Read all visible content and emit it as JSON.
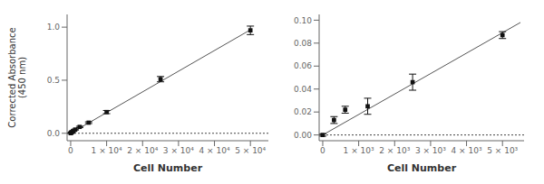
{
  "chart_data": [
    {
      "type": "scatter",
      "xlabel": "Cell Number",
      "ylabel": "Corrected Absorbance\n(450 nm)",
      "xlim": [
        -1000,
        55000
      ],
      "ylim": [
        -0.07,
        1.12
      ],
      "xticks": [
        0,
        {
          "value": 10000,
          "label": "1 × 10⁴"
        },
        {
          "value": 20000,
          "label": "2 × 10⁴"
        },
        {
          "value": 30000,
          "label": "3 × 10⁴"
        },
        {
          "value": 40000,
          "label": "4 × 10⁴"
        },
        {
          "value": 50000,
          "label": "5 × 10⁴"
        }
      ],
      "yticks": [
        {
          "value": 0.0,
          "label": "0.0"
        },
        0.5,
        {
          "value": 1.0,
          "label": "1.0"
        }
      ],
      "hlines": [
        {
          "value": 0,
          "color": "#444444",
          "line_style": "dotted"
        }
      ],
      "series": [
        {
          "type": "line",
          "color": "#555555",
          "line_style": "solid",
          "x": [
            0,
            50000
          ],
          "values": [
            0.0,
            0.975
          ]
        },
        {
          "type": "scatter",
          "color": "#111111",
          "marker": "square",
          "x": [
            0,
            156,
            313,
            625,
            1250,
            2500,
            5000,
            10000,
            25000,
            50000
          ],
          "values": [
            0.001,
            0.005,
            0.01,
            0.02,
            0.035,
            0.06,
            0.1,
            0.2,
            0.51,
            0.97
          ],
          "yerr": [
            0.002,
            0.003,
            0.003,
            0.004,
            0.005,
            0.006,
            0.008,
            0.015,
            0.025,
            0.04
          ]
        }
      ]
    },
    {
      "type": "scatter",
      "xlabel": "Cell Number",
      "xlim": [
        -100,
        5600
      ],
      "ylim": [
        -0.005,
        0.105
      ],
      "xticks": [
        0,
        {
          "value": 1000,
          "label": "1 × 10³"
        },
        {
          "value": 2000,
          "label": "2 × 10³"
        },
        {
          "value": 3000,
          "label": "3 × 10³"
        },
        {
          "value": 4000,
          "label": "4 × 10³"
        },
        {
          "value": 5000,
          "label": "5 × 10³"
        }
      ],
      "yticks": [
        {
          "value": 0.0,
          "label": "0.00"
        },
        {
          "value": 0.02,
          "label": "0.02"
        },
        {
          "value": 0.04,
          "label": "0.04"
        },
        {
          "value": 0.06,
          "label": "0.06"
        },
        {
          "value": 0.08,
          "label": "0.08"
        },
        {
          "value": 0.1,
          "label": "0.10"
        }
      ],
      "hlines": [
        {
          "value": 0,
          "color": "#444444",
          "line_style": "dotted"
        }
      ],
      "series": [
        {
          "type": "line",
          "color": "#555555",
          "line_style": "solid",
          "x": [
            0,
            5500
          ],
          "values": [
            0.0,
            0.098
          ]
        },
        {
          "type": "scatter",
          "color": "#111111",
          "marker": "square",
          "x": [
            0,
            313,
            625,
            1250,
            2500,
            5000
          ],
          "values": [
            0.0,
            0.013,
            0.022,
            0.025,
            0.046,
            0.087
          ],
          "yerr": [
            0.001,
            0.003,
            0.003,
            0.007,
            0.007,
            0.003
          ]
        }
      ]
    }
  ]
}
